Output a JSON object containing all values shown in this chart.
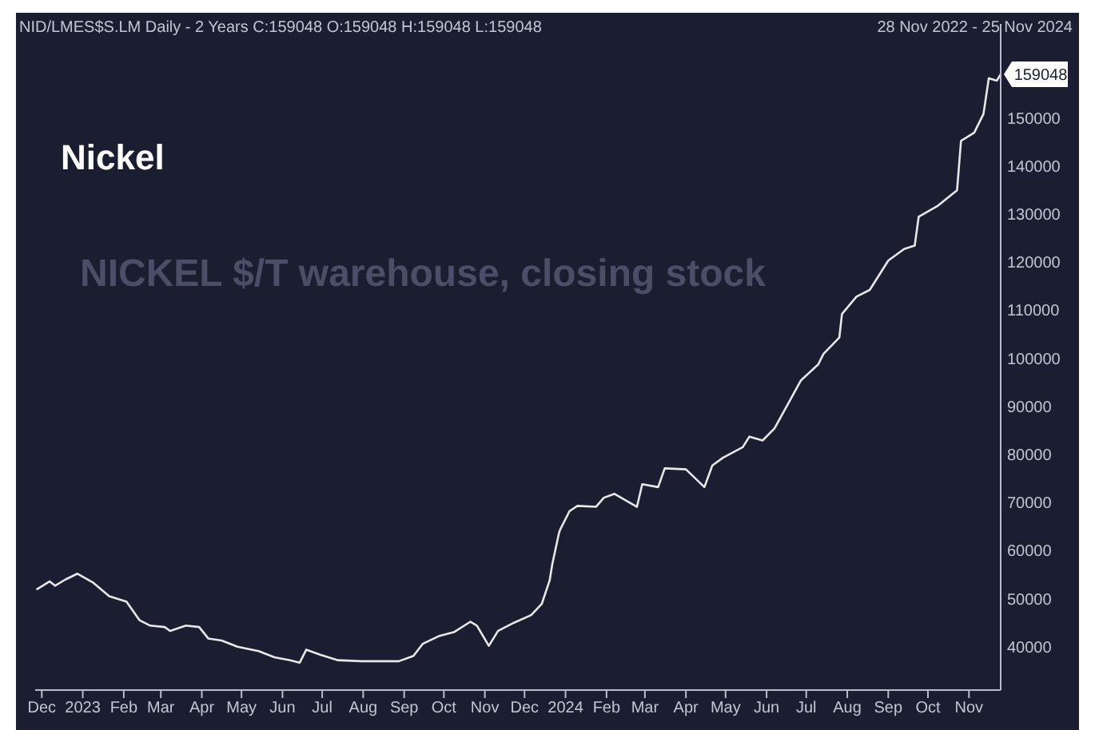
{
  "chart_data": {
    "type": "line",
    "title": "NID/LMES$S.LM Daily - 2 Years  C:159048 O:159048 H:159048 L:159048",
    "subtitle": "28 Nov 2022  -  25 Nov 2024",
    "annotations": [
      "Nickel",
      "NICKEL $/T warehouse, closing stock",
      {
        "text": "159048",
        "x": "2024-11-25",
        "y": 159048
      }
    ],
    "x": [
      "2022-11-27",
      "2022-12-07",
      "2022-12-11",
      "2022-12-19",
      "2022-12-28",
      "2023-01-09",
      "2023-01-21",
      "2023-02-03",
      "2023-02-13",
      "2023-02-21",
      "2023-03-04",
      "2023-03-08",
      "2023-03-20",
      "2023-03-30",
      "2023-04-06",
      "2023-04-16",
      "2023-04-28",
      "2023-05-14",
      "2023-05-26",
      "2023-06-07",
      "2023-06-14",
      "2023-06-19",
      "2023-06-30",
      "2023-07-13",
      "2023-07-31",
      "2023-08-28",
      "2023-09-08",
      "2023-09-15",
      "2023-09-27",
      "2023-10-09",
      "2023-10-21",
      "2023-10-26",
      "2023-11-04",
      "2023-11-11",
      "2023-11-23",
      "2023-12-06",
      "2023-12-14",
      "2023-12-20",
      "2023-12-22",
      "2023-12-27",
      "2023-12-28",
      "2024-01-04",
      "2024-01-10",
      "2024-01-24",
      "2024-01-30",
      "2024-02-07",
      "2024-02-24",
      "2024-02-28",
      "2024-03-11",
      "2024-03-16",
      "2024-04-01",
      "2024-04-15",
      "2024-04-21",
      "2024-04-29",
      "2024-05-14",
      "2024-05-19",
      "2024-05-29",
      "2024-06-07",
      "2024-06-17",
      "2024-06-27",
      "2024-07-10",
      "2024-07-14",
      "2024-07-26",
      "2024-07-28",
      "2024-08-08",
      "2024-08-18",
      "2024-09-01",
      "2024-09-13",
      "2024-09-21",
      "2024-09-24",
      "2024-10-08",
      "2024-10-23",
      "2024-10-26",
      "2024-11-05",
      "2024-11-12",
      "2024-11-16",
      "2024-11-22",
      "2024-11-25"
    ],
    "series": [
      {
        "color": "#e8e8ea",
        "values": [
          51900,
          53600,
          52700,
          54000,
          55200,
          53300,
          50500,
          49400,
          45500,
          44400,
          44100,
          43300,
          44400,
          44100,
          41700,
          41300,
          40000,
          39100,
          37800,
          37200,
          36700,
          39400,
          38300,
          37200,
          37000,
          37000,
          38100,
          40600,
          42200,
          43100,
          45200,
          44400,
          40200,
          43300,
          45000,
          46600,
          48900,
          53800,
          57200,
          63600,
          64400,
          68200,
          69300,
          69100,
          71000,
          71800,
          69100,
          73800,
          73200,
          77100,
          76900,
          73200,
          77700,
          79300,
          81500,
          83700,
          82900,
          85400,
          90400,
          95400,
          98700,
          100900,
          104300,
          109200,
          112800,
          114200,
          120300,
          122700,
          123400,
          129400,
          131600,
          134900,
          145200,
          146900,
          150800,
          158200,
          157700,
          159048
        ]
      }
    ],
    "xlim": [
      "2022-11-26",
      "2024-11-25"
    ],
    "xticks": [
      {
        "value": "2022-12-01",
        "label": "Dec"
      },
      {
        "value": "2023-01-01",
        "label": "2023"
      },
      {
        "value": "2023-02-01",
        "label": "Feb"
      },
      {
        "value": "2023-03-01",
        "label": "Mar"
      },
      {
        "value": "2023-04-01",
        "label": "Apr"
      },
      {
        "value": "2023-05-01",
        "label": "May"
      },
      {
        "value": "2023-06-01",
        "label": "Jun"
      },
      {
        "value": "2023-07-01",
        "label": "Jul"
      },
      {
        "value": "2023-08-01",
        "label": "Aug"
      },
      {
        "value": "2023-09-01",
        "label": "Sep"
      },
      {
        "value": "2023-10-01",
        "label": "Oct"
      },
      {
        "value": "2023-11-01",
        "label": "Nov"
      },
      {
        "value": "2023-12-01",
        "label": "Dec"
      },
      {
        "value": "2024-01-01",
        "label": "2024"
      },
      {
        "value": "2024-02-01",
        "label": "Feb"
      },
      {
        "value": "2024-03-01",
        "label": "Mar"
      },
      {
        "value": "2024-04-01",
        "label": "Apr"
      },
      {
        "value": "2024-05-01",
        "label": "May"
      },
      {
        "value": "2024-06-01",
        "label": "Jun"
      },
      {
        "value": "2024-07-01",
        "label": "Jul"
      },
      {
        "value": "2024-08-01",
        "label": "Aug"
      },
      {
        "value": "2024-09-01",
        "label": "Sep"
      },
      {
        "value": "2024-10-01",
        "label": "Oct"
      },
      {
        "value": "2024-11-01",
        "label": "Nov"
      }
    ],
    "ylim": [
      31000,
      169500
    ],
    "yticks": [
      40000,
      50000,
      60000,
      70000,
      80000,
      90000,
      100000,
      110000,
      120000,
      130000,
      140000,
      150000
    ],
    "grid": false,
    "legend": false,
    "marker": "none",
    "line_style": "solid"
  }
}
